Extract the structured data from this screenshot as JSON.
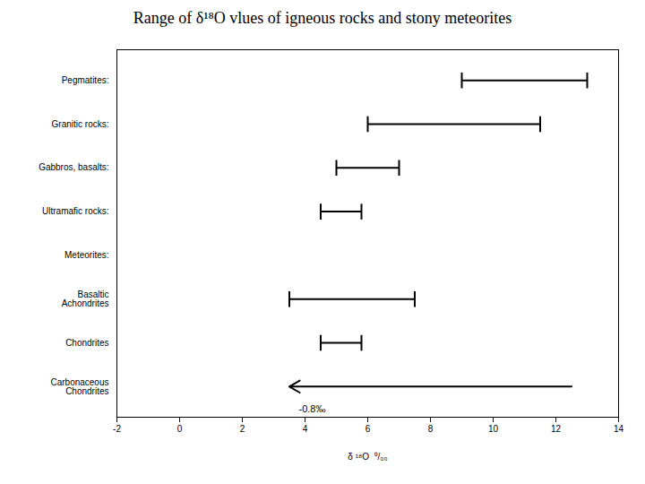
{
  "chart_data": {
    "type": "range",
    "orientation": "horizontal",
    "title": "Range of δ¹⁸O vlues of igneous rocks and stony meteorites",
    "x_label": "δ ¹⁸O  ⁰/₀₀",
    "categories": [
      "Pegmatites:",
      "Granitic rocks:",
      "Gabbros, basalts:",
      "Ultramafic rocks:",
      "Meteorites:",
      "Basaltic\nAchondrites",
      "Chondrites",
      "Carbonaceous\nChondrites"
    ],
    "series": [
      {
        "marker": "bar",
        "color": "#000000",
        "values": [
          [
            9.0,
            13.0
          ],
          [
            6.0,
            11.5
          ],
          [
            5.0,
            7.0
          ],
          [
            4.5,
            5.8
          ],
          null,
          [
            3.5,
            7.5
          ],
          [
            4.5,
            5.8
          ],
          null
        ]
      },
      {
        "marker": "arrow",
        "color": "#000000",
        "values": [
          null,
          null,
          null,
          null,
          null,
          null,
          null,
          [
            3.5,
            12.5
          ]
        ]
      }
    ],
    "annotations": [
      {
        "text": "-0.8‰",
        "x": 3.8,
        "category": "Carbonaceous\nChondrites"
      }
    ],
    "xlim": [
      -2,
      14
    ],
    "xticks": [
      -2,
      0,
      2,
      4,
      6,
      8,
      10,
      12,
      14
    ],
    "grid": false
  }
}
